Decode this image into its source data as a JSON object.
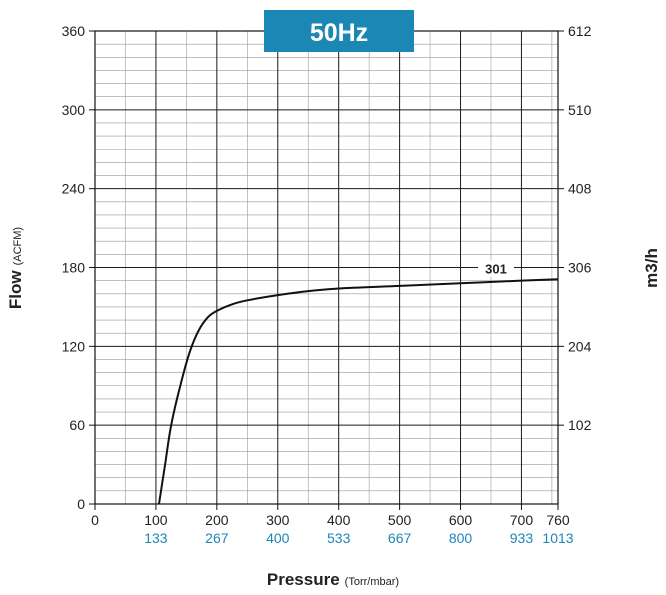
{
  "chart_data": {
    "type": "line",
    "badge": "50Hz",
    "badge_color": "#1a87b5",
    "accent_color": "#1f86b8",
    "xlabel": "Pressure",
    "xunit_primary": "Torr",
    "xunit_separator": "/",
    "xunit_secondary": "mbar",
    "ylabel": "Flow",
    "yunit": "(ACFM)",
    "y2label": "m3/h",
    "xlim": [
      0,
      760
    ],
    "ylim": [
      0,
      360
    ],
    "x_ticks": [
      0,
      100,
      200,
      300,
      400,
      500,
      600,
      700,
      760
    ],
    "x_ticks_secondary": [
      {
        "x": 100,
        "label": "133"
      },
      {
        "x": 200,
        "label": "267"
      },
      {
        "x": 300,
        "label": "400"
      },
      {
        "x": 400,
        "label": "533"
      },
      {
        "x": 500,
        "label": "667"
      },
      {
        "x": 600,
        "label": "800"
      },
      {
        "x": 700,
        "label": "933"
      },
      {
        "x": 760,
        "label": "1013"
      }
    ],
    "y_ticks": [
      0,
      60,
      120,
      180,
      240,
      300,
      360
    ],
    "y2_ticks": [
      {
        "y": 60,
        "label": "102"
      },
      {
        "y": 120,
        "label": "204"
      },
      {
        "y": 180,
        "label": "306"
      },
      {
        "y": 240,
        "label": "408"
      },
      {
        "y": 300,
        "label": "510"
      },
      {
        "y": 360,
        "label": "612"
      }
    ],
    "grid": true,
    "series": [
      {
        "name": "301",
        "x": [
          105,
          115,
          125,
          140,
          155,
          170,
          185,
          200,
          225,
          250,
          300,
          350,
          400,
          500,
          600,
          700,
          760
        ],
        "y": [
          0,
          30,
          60,
          90,
          115,
          132,
          142,
          147,
          152,
          155,
          159,
          162,
          164,
          166,
          168,
          170,
          171
        ]
      }
    ]
  }
}
